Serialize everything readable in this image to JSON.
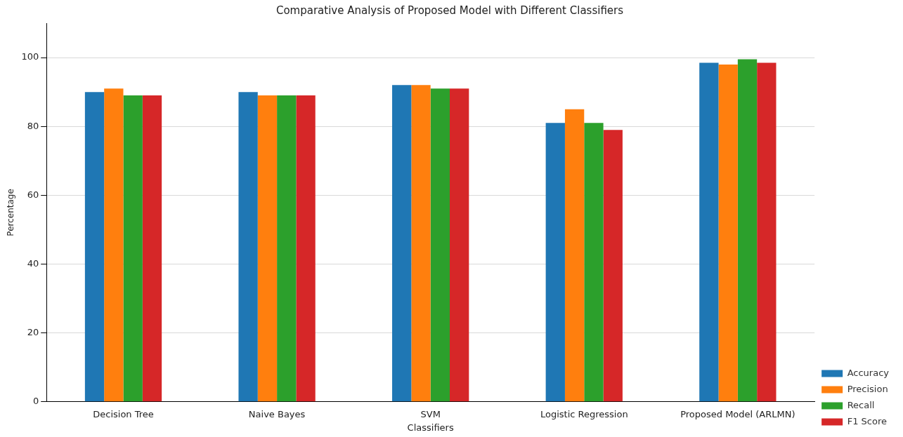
{
  "chart_data": {
    "type": "bar",
    "title": "Comparative Analysis of Proposed Model with Different Classifiers",
    "xlabel": "Classifiers",
    "ylabel": "Percentage",
    "categories": [
      "Decision Tree",
      "Naive Bayes",
      "SVM",
      "Logistic Regression",
      "Proposed Model (ARLMN)"
    ],
    "series": [
      {
        "name": "Accuracy",
        "color": "#1f77b4",
        "values": [
          90,
          90,
          92,
          81,
          98.5
        ]
      },
      {
        "name": "Precision",
        "color": "#ff7f0e",
        "values": [
          91,
          89,
          92,
          85,
          98
        ]
      },
      {
        "name": "Recall",
        "color": "#2ca02c",
        "values": [
          89,
          89,
          91,
          81,
          99.5
        ]
      },
      {
        "name": "F1 Score",
        "color": "#d62728",
        "values": [
          89,
          89,
          91,
          79,
          98.5
        ]
      }
    ],
    "ylim": [
      0,
      110
    ],
    "yticks": [
      0,
      20,
      40,
      60,
      80,
      100
    ],
    "grid": "y",
    "legend": "bottom right"
  }
}
